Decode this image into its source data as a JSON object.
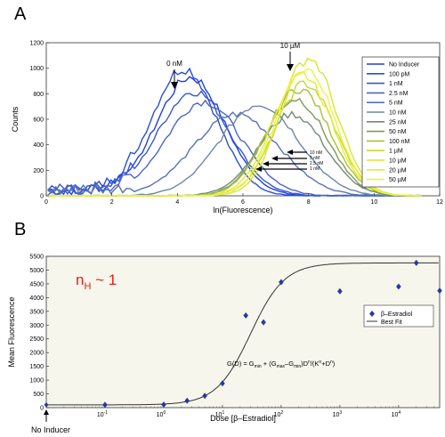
{
  "chart_data": [
    {
      "panel": "A",
      "type": "line",
      "xlabel": "ln(Fluorescence)",
      "ylabel": "Counts",
      "xlim": [
        0,
        12
      ],
      "ylim": [
        0,
        1200
      ],
      "xticks": [
        "0",
        "2",
        "4",
        "6",
        "8",
        "10",
        "12"
      ],
      "yticks": [
        "0",
        "200",
        "400",
        "600",
        "800",
        "1000",
        "1200"
      ],
      "grid": false,
      "legend_position": "top-right",
      "series": [
        {
          "name": "No Inducer",
          "color": "#1f3fe0",
          "peak_x": 4.4,
          "peak": 930,
          "width": 1.05
        },
        {
          "name": "100 pM",
          "color": "#2a4ed8",
          "peak_x": 4.2,
          "peak": 1000,
          "width": 1.0
        },
        {
          "name": "1 nM",
          "color": "#3656d0",
          "peak_x": 4.5,
          "peak": 820,
          "width": 1.1
        },
        {
          "name": "2.5 nM",
          "color": "#4a66c4",
          "peak_x": 4.8,
          "peak": 740,
          "width": 1.15
        },
        {
          "name": "5 nM",
          "color": "#5672b8",
          "peak_x": 5.8,
          "peak": 640,
          "width": 1.3
        },
        {
          "name": "10 nM",
          "color": "#6f86aa",
          "peak_x": 6.5,
          "peak": 720,
          "width": 1.2
        },
        {
          "name": "25 nM",
          "color": "#6f8a78",
          "peak_x": 7.5,
          "peak": 640,
          "width": 1.0
        },
        {
          "name": "50 nM",
          "color": "#7e9a52",
          "peak_x": 7.6,
          "peak": 760,
          "width": 0.95
        },
        {
          "name": "100 nM",
          "color": "#a8c03a",
          "peak_x": 7.7,
          "peak": 840,
          "width": 0.95
        },
        {
          "name": "1 µM",
          "color": "#c5d832",
          "peak_x": 7.9,
          "peak": 880,
          "width": 0.9
        },
        {
          "name": "10 µM",
          "color": "#d8e82a",
          "peak_x": 8.0,
          "peak": 1080,
          "width": 0.85
        },
        {
          "name": "20 µM",
          "color": "#e4ee2a",
          "peak_x": 7.8,
          "peak": 960,
          "width": 0.9
        },
        {
          "name": "50 µM",
          "color": "#eef246",
          "peak_x": 7.9,
          "peak": 1010,
          "width": 0.88
        }
      ],
      "annotations": [
        {
          "text": "0 nM",
          "x": 4.0,
          "y": 1050
        },
        {
          "text": "10 µM",
          "x": 8.0,
          "y": 1140
        }
      ],
      "inset_labels": [
        "10 nM",
        "5 nM",
        "2.5 nM",
        "1 nM"
      ]
    },
    {
      "panel": "B",
      "type": "scatter",
      "xlabel": "Dose [β–Estradiol]",
      "ylabel": "Mean Fluorescence",
      "xscale": "log",
      "xlim": [
        0.01,
        50000
      ],
      "ylim": [
        0,
        5500
      ],
      "yticks": [
        "0",
        "500",
        "1000",
        "1500",
        "2000",
        "2500",
        "3000",
        "3500",
        "4000",
        "4500",
        "5000",
        "5500"
      ],
      "xticks": [
        {
          "base": "10",
          "exp": "-1",
          "value": 0.1
        },
        {
          "base": "10",
          "exp": "0",
          "value": 1
        },
        {
          "base": "10",
          "exp": "1",
          "value": 10
        },
        {
          "base": "10",
          "exp": "2",
          "value": 100
        },
        {
          "base": "10",
          "exp": "3",
          "value": 1000
        },
        {
          "base": "10",
          "exp": "4",
          "value": 10000
        }
      ],
      "grid": false,
      "legend_position": "right",
      "series": [
        {
          "name": "β–Estradiol",
          "marker": "diamond",
          "color": "#2a3a9a",
          "x": [
            0.1,
            1,
            2.5,
            5,
            10,
            25,
            50,
            100,
            1000,
            10000,
            20000,
            50000
          ],
          "y": [
            100,
            110,
            250,
            430,
            880,
            3350,
            3100,
            4560,
            4230,
            4400,
            5260,
            4250
          ]
        },
        {
          "name": "Best Fit",
          "type": "line",
          "color": "#333333",
          "params": {
            "Gmin": 100,
            "Gmax": 5260,
            "K": 30,
            "n": 1.5
          }
        }
      ],
      "annotations": [
        {
          "text": "No Inducer",
          "arrow": true
        },
        {
          "text": "n",
          "sub": "H",
          "tail": " ~ 1",
          "color": "#e02020"
        },
        {
          "text": "G(D) = G",
          "formula": true
        }
      ],
      "formula": {
        "lhs": "G(D) = G",
        "min": "min",
        "mid": " + (G",
        "max": "max",
        "minus": "–G",
        "min2": "min",
        "tail": ")D",
        "n": "n",
        "slash": "/(K",
        "n2": "n",
        "plus": "+D",
        "n3": "n",
        "close": ")"
      }
    }
  ],
  "labels": {
    "panelA": "A",
    "panelB": "B"
  }
}
